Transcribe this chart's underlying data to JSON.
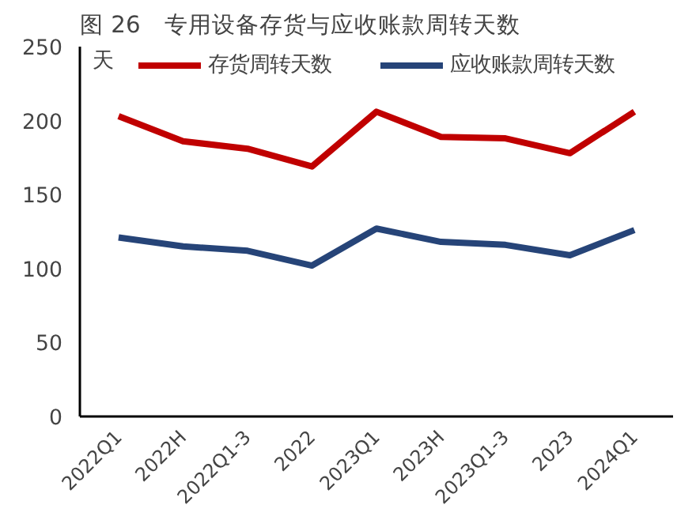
{
  "chart_data": {
    "type": "line",
    "title": "图 26　专用设备存货与应收账款周转天数",
    "ylabel": "天",
    "categories": [
      "2022Q1",
      "2022H",
      "2022Q1-3",
      "2022",
      "2023Q1",
      "2023H",
      "2023Q1-3",
      "2023",
      "2024Q1"
    ],
    "series": [
      {
        "name": "存货周转天数",
        "color": "#c00000",
        "values": [
          203,
          186,
          181,
          169,
          206,
          189,
          188,
          178,
          206
        ]
      },
      {
        "name": "应收账款周转天数",
        "color": "#264478",
        "values": [
          121,
          115,
          112,
          102,
          127,
          118,
          116,
          109,
          126
        ]
      }
    ],
    "ylim": [
      0,
      250
    ],
    "yticks": [
      0,
      50,
      100,
      150,
      200,
      250
    ],
    "grid": false,
    "legend": "top",
    "marker": "none",
    "line_style": "solid"
  }
}
